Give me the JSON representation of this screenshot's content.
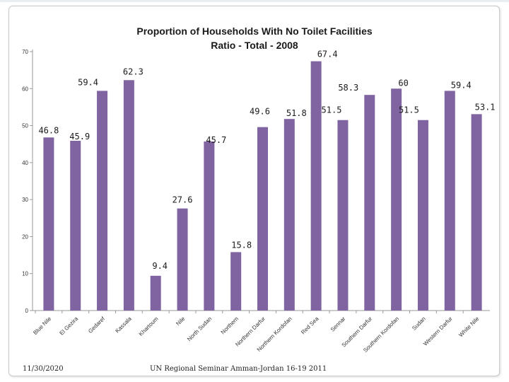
{
  "chart_data": {
    "type": "bar",
    "title_line1": "Proportion  of Households With No Toilet Facilities",
    "title_line2": "Ratio - Total - 2008",
    "ylim": [
      0,
      70
    ],
    "yticks": [
      0,
      10,
      20,
      30,
      40,
      50,
      60,
      70
    ],
    "bar_color": "#8064a2",
    "categories": [
      "Blue Nile",
      "El Gezira",
      "Gedaref",
      "Kassala",
      "Khartoum",
      "Nile",
      "North Sudan",
      "Northern",
      "Northern Darfur",
      "Northern Kordofan",
      "Red Sea",
      "Sennar",
      "Southern Darfur",
      "Southern Kordofan",
      "Sudan",
      "Western Darfur",
      "White Nile"
    ],
    "values": [
      46.8,
      45.9,
      59.4,
      62.3,
      9.4,
      27.6,
      45.7,
      15.8,
      49.6,
      51.8,
      67.4,
      51.5,
      58.3,
      60,
      51.5,
      59.4,
      53.1
    ]
  },
  "footer": {
    "date": "11/30/2020",
    "seminar": "UN Regional Seminar  Amman-Jordan 16-19 2011"
  }
}
